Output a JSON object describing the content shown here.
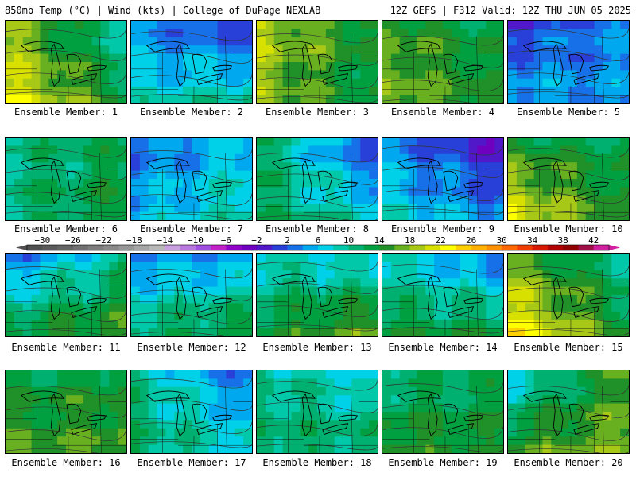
{
  "header": {
    "left": "850mb Temp (°C) | Wind (kts) | College of DuPage NEXLAB",
    "right": "12Z GEFS | F312 Valid: 12Z THU JUN 05 2025"
  },
  "label_prefix": "Ensemble Member:",
  "members": [
    {
      "label": "Ensemble Member: 1",
      "nw": 18,
      "ne": 8,
      "sw": 22,
      "se": 14
    },
    {
      "label": "Ensemble Member: 2",
      "nw": 4,
      "ne": 0,
      "sw": 8,
      "se": 10
    },
    {
      "label": "Ensemble Member: 3",
      "nw": 20,
      "ne": 14,
      "sw": 18,
      "se": 12
    },
    {
      "label": "Ensemble Member: 4",
      "nw": 16,
      "ne": 12,
      "sw": 18,
      "se": 14
    },
    {
      "label": "Ensemble Member: 5",
      "nw": 0,
      "ne": 4,
      "sw": 6,
      "se": 4
    },
    {
      "label": "Ensemble Member: 6",
      "nw": 10,
      "ne": 12,
      "sw": 11,
      "se": 14
    },
    {
      "label": "Ensemble Member: 7",
      "nw": 2,
      "ne": 6,
      "sw": 6,
      "se": 10
    },
    {
      "label": "Ensemble Member: 8",
      "nw": 12,
      "ne": 0,
      "sw": 12,
      "se": 8
    },
    {
      "label": "Ensemble Member: 9",
      "nw": 4,
      "ne": -2,
      "sw": 8,
      "se": 4
    },
    {
      "label": "Ensemble Member: 10",
      "nw": 14,
      "ne": 12,
      "sw": 22,
      "se": 14
    },
    {
      "label": "Ensemble Member: 11",
      "nw": 2,
      "ne": 10,
      "sw": 14,
      "se": 16
    },
    {
      "label": "Ensemble Member: 12",
      "nw": 4,
      "ne": 4,
      "sw": 12,
      "se": 14
    },
    {
      "label": "Ensemble Member: 13",
      "nw": 8,
      "ne": 6,
      "sw": 14,
      "se": 18
    },
    {
      "label": "Ensemble Member: 14",
      "nw": 8,
      "ne": 2,
      "sw": 14,
      "se": 14
    },
    {
      "label": "Ensemble Member: 15",
      "nw": 16,
      "ne": 10,
      "sw": 24,
      "se": 14
    },
    {
      "label": "Ensemble Member: 16",
      "nw": 12,
      "ne": 14,
      "sw": 16,
      "se": 16
    },
    {
      "label": "Ensemble Member: 17",
      "nw": 10,
      "ne": 2,
      "sw": 12,
      "se": 8
    },
    {
      "label": "Ensemble Member: 18",
      "nw": 10,
      "ne": 6,
      "sw": 12,
      "se": 12
    },
    {
      "label": "Ensemble Member: 19",
      "nw": 10,
      "ne": 12,
      "sw": 16,
      "se": 14
    },
    {
      "label": "Ensemble Member: 20",
      "nw": 6,
      "ne": 16,
      "sw": 16,
      "se": 18
    }
  ],
  "colorbar": {
    "ticks": [
      "-30",
      "-26",
      "-22",
      "-18",
      "-14",
      "-10",
      "-6",
      "-2",
      "2",
      "6",
      "10",
      "14",
      "18",
      "22",
      "26",
      "30",
      "34",
      "38",
      "42"
    ],
    "min": -32,
    "max": 44,
    "step": 2,
    "colors": [
      "#505050",
      "#5a5a5a",
      "#646464",
      "#707070",
      "#7c7c7c",
      "#888888",
      "#969696",
      "#a6a6a6",
      "#b8b8b8",
      "#c8a0e0",
      "#b878e0",
      "#a050e0",
      "#c020c8",
      "#9000c8",
      "#7000c0",
      "#5018c8",
      "#2840d8",
      "#1870e8",
      "#00a8f0",
      "#00d0e8",
      "#00c8a8",
      "#00b070",
      "#00a040",
      "#209028",
      "#68b020",
      "#a8c818",
      "#d8e000",
      "#ffff00",
      "#ffd000",
      "#ffb000",
      "#ff9000",
      "#ff6800",
      "#f03c00",
      "#d81800",
      "#b00000",
      "#900000",
      "#a01048",
      "#d020a0"
    ]
  }
}
